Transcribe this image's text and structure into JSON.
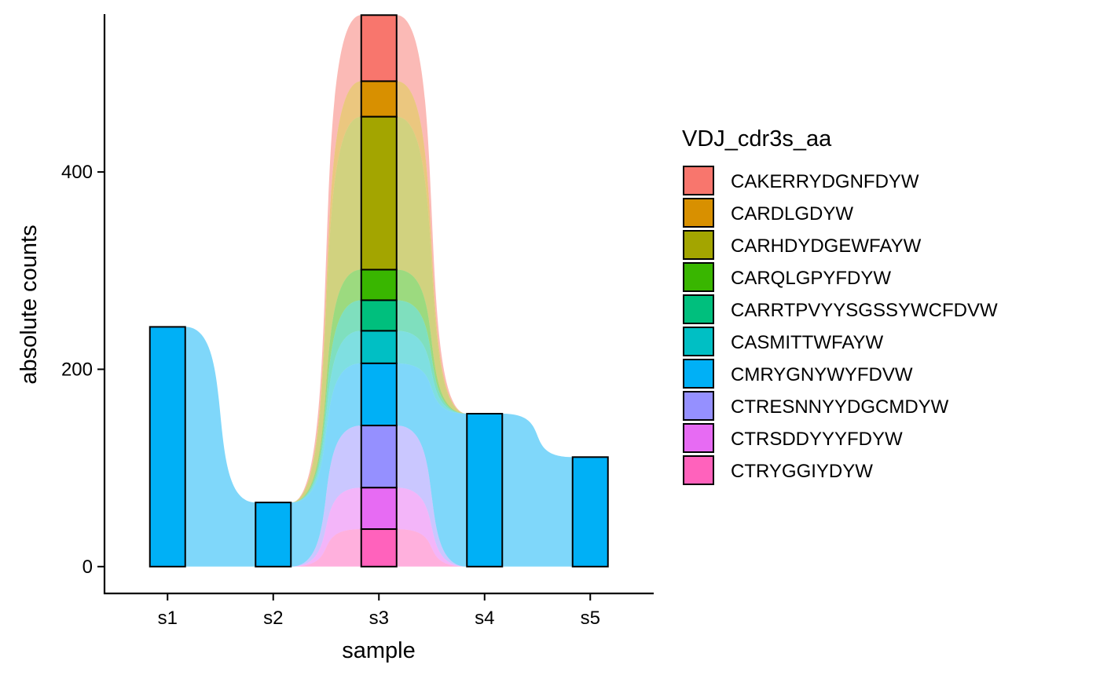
{
  "chart_data": {
    "type": "bar",
    "subtype": "stacked-alluvial",
    "title": "",
    "xlabel": "sample",
    "ylabel": "absolute counts",
    "categories": [
      "s1",
      "s2",
      "s3",
      "s4",
      "s5"
    ],
    "ylim": [
      -28,
      560
    ],
    "yticks": [
      0,
      200,
      400
    ],
    "grid": false,
    "legend": {
      "title": "VDJ_cdr3s_aa",
      "position": "right"
    },
    "series": [
      {
        "name": "CAKERRYDGNFDYW",
        "color": "#F8766D",
        "values": [
          0,
          0,
          67,
          0,
          0
        ]
      },
      {
        "name": "CARDLGDYW",
        "color": "#D89000",
        "values": [
          0,
          0,
          36,
          0,
          0
        ]
      },
      {
        "name": "CARHDYDGEWFAYW",
        "color": "#A3A500",
        "values": [
          0,
          0,
          155,
          0,
          0
        ]
      },
      {
        "name": "CARQLGPYFDYW",
        "color": "#39B600",
        "values": [
          0,
          0,
          31,
          0,
          0
        ]
      },
      {
        "name": "CARRTPVYYSGSSYWCFDVW",
        "color": "#00BF7D",
        "values": [
          0,
          0,
          31,
          0,
          0
        ]
      },
      {
        "name": "CASMITTWFAYW",
        "color": "#00BFC4",
        "values": [
          0,
          0,
          33,
          0,
          0
        ]
      },
      {
        "name": "CMRYGNYWYFDVW",
        "color": "#00B0F6",
        "values": [
          243,
          65,
          63,
          155,
          111
        ]
      },
      {
        "name": "CTRESNNYYDGCMDYW",
        "color": "#9590FF",
        "values": [
          0,
          0,
          63,
          0,
          0
        ]
      },
      {
        "name": "CTRSDDYYYFDYW",
        "color": "#E76BF3",
        "values": [
          0,
          0,
          42,
          0,
          0
        ]
      },
      {
        "name": "CTRYGGIYDYW",
        "color": "#FF62BC",
        "values": [
          0,
          0,
          38,
          0,
          0
        ]
      }
    ]
  }
}
